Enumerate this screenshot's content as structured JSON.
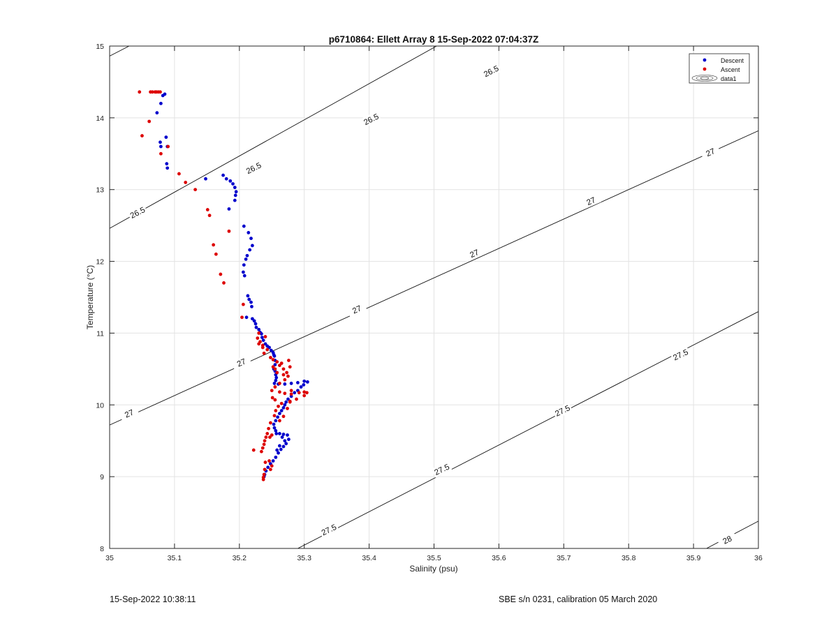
{
  "chart_data": {
    "type": "scatter",
    "title": "p6710864: Ellett Array 8 15-Sep-2022 07:04:37Z",
    "xlabel": "Salinity (psu)",
    "ylabel": "Temperature (°C)",
    "xlim": [
      35,
      36
    ],
    "ylim": [
      8,
      15
    ],
    "xticks": [
      "35",
      "35.1",
      "35.2",
      "35.3",
      "35.4",
      "35.5",
      "35.6",
      "35.7",
      "35.8",
      "35.9",
      "36"
    ],
    "yticks": [
      "8",
      "9",
      "10",
      "11",
      "12",
      "13",
      "14",
      "15"
    ],
    "grid": true,
    "legend_position": "top-right",
    "legend": [
      "Descent",
      "Ascent",
      "data1"
    ],
    "contours": [
      {
        "label": "26.5",
        "lines": [
          [
            [
              35.0,
              12.46
            ],
            [
              36.0,
              17.5
            ]
          ],
          [
            [
              35.0,
              14.86
            ],
            [
              35.03,
              15.0
            ]
          ]
        ],
        "labels": [
          [
            35.043,
            12.68,
            26.8
          ],
          [
            35.222,
            13.3,
            26.8
          ],
          [
            35.403,
            13.98,
            26.8
          ],
          [
            35.588,
            14.65,
            26.8
          ]
        ]
      },
      {
        "label": "27",
        "lines": [
          [
            [
              35.0,
              9.72
            ],
            [
              36.0,
              13.82
            ]
          ]
        ],
        "labels": [
          [
            35.03,
            9.88,
            23.5
          ],
          [
            35.203,
            10.59,
            23.5
          ],
          [
            35.381,
            11.33,
            23.5
          ],
          [
            35.562,
            12.11,
            23.5
          ],
          [
            35.742,
            12.84,
            23.5
          ],
          [
            35.926,
            13.52,
            23.5
          ]
        ]
      },
      {
        "label": "27.5",
        "lines": [
          [
            [
              35.29,
              8.0
            ],
            [
              36.0,
              11.3
            ]
          ]
        ],
        "labels": [
          [
            35.338,
            8.26,
            25.5
          ],
          [
            35.512,
            9.1,
            25.5
          ],
          [
            35.698,
            9.92,
            25.5
          ],
          [
            35.88,
            10.7,
            25.5
          ]
        ]
      },
      {
        "label": "28",
        "lines": [
          [
            [
              35.92,
              8.0
            ],
            [
              36.0,
              8.38
            ]
          ]
        ],
        "labels": [
          [
            35.952,
            8.12,
            26
          ]
        ]
      }
    ],
    "series": [
      {
        "name": "Descent",
        "color": "#0000cc",
        "points": [
          [
            35.085,
            14.33
          ],
          [
            35.082,
            14.31
          ],
          [
            35.079,
            14.2
          ],
          [
            35.073,
            14.07
          ],
          [
            35.078,
            13.66
          ],
          [
            35.079,
            13.6
          ],
          [
            35.087,
            13.73
          ],
          [
            35.089,
            13.6
          ],
          [
            35.088,
            13.36
          ],
          [
            35.089,
            13.3
          ],
          [
            35.148,
            13.15
          ],
          [
            35.175,
            13.2
          ],
          [
            35.18,
            13.15
          ],
          [
            35.186,
            13.12
          ],
          [
            35.19,
            13.08
          ],
          [
            35.193,
            13.03
          ],
          [
            35.195,
            12.97
          ],
          [
            35.194,
            12.92
          ],
          [
            35.193,
            12.85
          ],
          [
            35.184,
            12.73
          ],
          [
            35.207,
            12.49
          ],
          [
            35.214,
            12.4
          ],
          [
            35.218,
            12.32
          ],
          [
            35.22,
            12.22
          ],
          [
            35.216,
            12.16
          ],
          [
            35.212,
            12.08
          ],
          [
            35.21,
            12.03
          ],
          [
            35.207,
            11.95
          ],
          [
            35.206,
            11.85
          ],
          [
            35.208,
            11.8
          ],
          [
            35.213,
            11.52
          ],
          [
            35.215,
            11.47
          ],
          [
            35.218,
            11.43
          ],
          [
            35.219,
            11.37
          ],
          [
            35.211,
            11.22
          ],
          [
            35.22,
            11.2
          ],
          [
            35.223,
            11.17
          ],
          [
            35.225,
            11.13
          ],
          [
            35.226,
            11.08
          ],
          [
            35.23,
            11.05
          ],
          [
            35.232,
            11.01
          ],
          [
            35.234,
            10.99
          ],
          [
            35.235,
            10.94
          ],
          [
            35.237,
            10.9
          ],
          [
            35.24,
            10.85
          ],
          [
            35.243,
            10.82
          ],
          [
            35.246,
            10.8
          ],
          [
            35.249,
            10.76
          ],
          [
            35.252,
            10.73
          ],
          [
            35.253,
            10.7
          ],
          [
            35.254,
            10.68
          ],
          [
            35.255,
            10.62
          ],
          [
            35.255,
            10.56
          ],
          [
            35.253,
            10.5
          ],
          [
            35.255,
            10.47
          ],
          [
            35.256,
            10.42
          ],
          [
            35.257,
            10.38
          ],
          [
            35.256,
            10.34
          ],
          [
            35.254,
            10.3
          ],
          [
            35.26,
            10.29
          ],
          [
            35.27,
            10.29
          ],
          [
            35.28,
            10.3
          ],
          [
            35.29,
            10.31
          ],
          [
            35.3,
            10.33
          ],
          [
            35.305,
            10.32
          ],
          [
            35.299,
            10.28
          ],
          [
            35.295,
            10.25
          ],
          [
            35.29,
            10.2
          ],
          [
            35.285,
            10.17
          ],
          [
            35.28,
            10.12
          ],
          [
            35.275,
            10.08
          ],
          [
            35.272,
            10.04
          ],
          [
            35.27,
            10.0
          ],
          [
            35.268,
            9.96
          ],
          [
            35.265,
            9.92
          ],
          [
            35.262,
            9.88
          ],
          [
            35.259,
            9.83
          ],
          [
            35.256,
            9.78
          ],
          [
            35.253,
            9.73
          ],
          [
            35.254,
            9.68
          ],
          [
            35.256,
            9.64
          ],
          [
            35.257,
            9.6
          ],
          [
            35.262,
            9.6
          ],
          [
            35.268,
            9.59
          ],
          [
            35.274,
            9.58
          ],
          [
            35.276,
            9.52
          ],
          [
            35.272,
            9.46
          ],
          [
            35.268,
            9.42
          ],
          [
            35.264,
            9.38
          ],
          [
            35.26,
            9.33
          ],
          [
            35.256,
            9.27
          ],
          [
            35.252,
            9.22
          ],
          [
            35.248,
            9.18
          ],
          [
            35.244,
            9.13
          ],
          [
            35.241,
            9.08
          ],
          [
            35.239,
            9.03
          ],
          [
            35.238,
            9.0
          ],
          [
            35.266,
            9.55
          ],
          [
            35.27,
            9.5
          ],
          [
            35.262,
            9.43
          ],
          [
            35.258,
            9.37
          ]
        ]
      },
      {
        "name": "Ascent",
        "color": "#dd0000",
        "points": [
          [
            35.046,
            14.36
          ],
          [
            35.063,
            14.36
          ],
          [
            35.066,
            14.36
          ],
          [
            35.07,
            14.36
          ],
          [
            35.072,
            14.36
          ],
          [
            35.075,
            14.36
          ],
          [
            35.078,
            14.36
          ],
          [
            35.061,
            13.95
          ],
          [
            35.05,
            13.75
          ],
          [
            35.079,
            13.5
          ],
          [
            35.09,
            13.6
          ],
          [
            35.107,
            13.22
          ],
          [
            35.117,
            13.1
          ],
          [
            35.132,
            13.0
          ],
          [
            35.151,
            12.72
          ],
          [
            35.154,
            12.64
          ],
          [
            35.184,
            12.42
          ],
          [
            35.16,
            12.23
          ],
          [
            35.164,
            12.1
          ],
          [
            35.171,
            11.82
          ],
          [
            35.176,
            11.7
          ],
          [
            35.206,
            11.4
          ],
          [
            35.204,
            11.22
          ],
          [
            35.228,
            10.93
          ],
          [
            35.23,
            10.85
          ],
          [
            35.236,
            10.8
          ],
          [
            35.238,
            10.72
          ],
          [
            35.248,
            10.66
          ],
          [
            35.252,
            10.63
          ],
          [
            35.258,
            10.6
          ],
          [
            35.262,
            10.55
          ],
          [
            35.268,
            10.5
          ],
          [
            35.273,
            10.45
          ],
          [
            35.275,
            10.4
          ],
          [
            35.27,
            10.35
          ],
          [
            35.262,
            10.3
          ],
          [
            35.255,
            10.25
          ],
          [
            35.25,
            10.2
          ],
          [
            35.262,
            10.18
          ],
          [
            35.27,
            10.16
          ],
          [
            35.28,
            10.15
          ],
          [
            35.292,
            10.17
          ],
          [
            35.3,
            10.18
          ],
          [
            35.304,
            10.17
          ],
          [
            35.3,
            10.13
          ],
          [
            35.288,
            10.08
          ],
          [
            35.278,
            10.05
          ],
          [
            35.265,
            10.02
          ],
          [
            35.26,
            9.98
          ],
          [
            35.256,
            9.92
          ],
          [
            35.254,
            9.85
          ],
          [
            35.248,
            9.75
          ],
          [
            35.245,
            9.67
          ],
          [
            35.243,
            9.6
          ],
          [
            35.241,
            9.55
          ],
          [
            35.239,
            9.5
          ],
          [
            35.238,
            9.45
          ],
          [
            35.236,
            9.4
          ],
          [
            35.234,
            9.35
          ],
          [
            35.222,
            9.37
          ],
          [
            35.24,
            9.2
          ],
          [
            35.239,
            9.1
          ],
          [
            35.238,
            9.03
          ],
          [
            35.237,
            8.99
          ],
          [
            35.237,
            8.96
          ],
          [
            35.248,
            9.1
          ],
          [
            35.25,
            9.15
          ],
          [
            35.246,
            9.22
          ],
          [
            35.247,
            9.55
          ],
          [
            35.25,
            9.58
          ],
          [
            35.262,
            9.78
          ],
          [
            35.268,
            9.84
          ],
          [
            35.274,
            9.95
          ],
          [
            35.278,
            10.04
          ],
          [
            35.255,
            10.07
          ],
          [
            35.251,
            10.1
          ],
          [
            35.28,
            10.2
          ],
          [
            35.278,
            10.53
          ],
          [
            35.276,
            10.62
          ],
          [
            35.265,
            10.58
          ],
          [
            35.255,
            10.5
          ],
          [
            35.243,
            10.77
          ],
          [
            35.236,
            10.83
          ],
          [
            35.232,
            10.88
          ],
          [
            35.23,
            11.0
          ],
          [
            35.24,
            10.95
          ],
          [
            35.252,
            10.53
          ],
          [
            35.258,
            10.45
          ],
          [
            35.268,
            10.42
          ]
        ]
      }
    ]
  },
  "footer": {
    "left": "15-Sep-2022 10:38:11",
    "right": "SBE s/n 0231, calibration 05 March 2020"
  }
}
